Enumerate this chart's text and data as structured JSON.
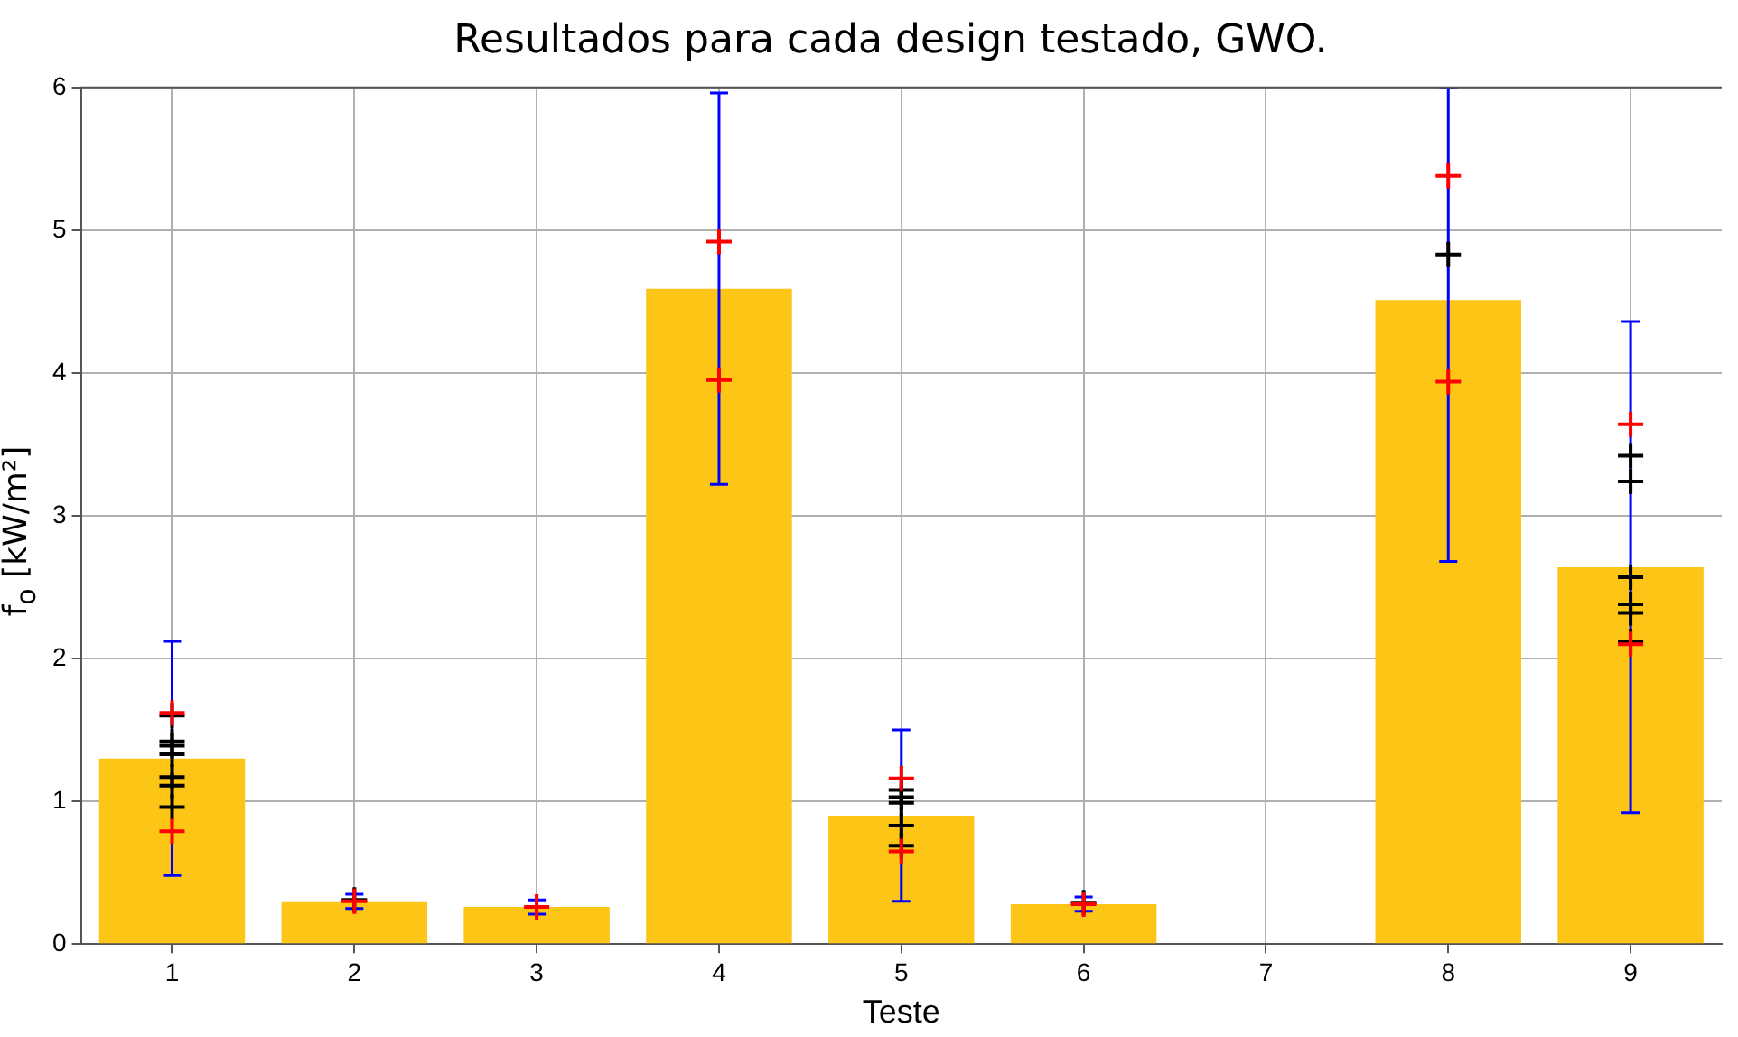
{
  "chart_data": {
    "type": "bar",
    "title": "Resultados para cada design testado, GWO.",
    "xlabel": "Teste",
    "ylabel": "f$_{o}$ [kW/m²]",
    "categories": [
      "1",
      "2",
      "3",
      "4",
      "5",
      "6",
      "7",
      "8",
      "9"
    ],
    "ylim": [
      0,
      6
    ],
    "yticks": [
      0,
      1,
      2,
      3,
      4,
      5,
      6
    ],
    "grid": true,
    "legend": false,
    "marker": "cross",
    "series": [
      {
        "color": "#fdc616",
        "values": [
          1.3,
          0.3,
          0.26,
          4.59,
          0.9,
          0.28,
          null,
          4.51,
          2.64
        ],
        "errors": [
          0.82,
          0.05,
          0.05,
          1.37,
          0.6,
          0.05,
          null,
          [
            2.68,
            6
          ],
          1.72
        ]
      },
      {
        "type": "scatter",
        "color": "#000000",
        "x": [
          "1",
          "1",
          "1",
          "1",
          "1",
          "1",
          "1",
          "2",
          "5",
          "5",
          "5",
          "5",
          "5",
          "6",
          "8",
          "9",
          "9",
          "9",
          "9",
          "9",
          "9"
        ],
        "values": [
          1.6,
          1.42,
          1.39,
          1.33,
          1.17,
          1.11,
          0.96,
          0.31,
          1.08,
          1.03,
          0.99,
          0.83,
          0.69,
          0.29,
          4.83,
          3.42,
          3.24,
          2.57,
          2.38,
          2.32,
          2.12
        ]
      },
      {
        "type": "scatter",
        "color": "#ff0000",
        "x": [
          "1",
          "1",
          "2",
          "3",
          "4",
          "4",
          "5",
          "5",
          "6",
          "8",
          "8",
          "9",
          "9"
        ],
        "values": [
          1.62,
          0.79,
          0.3,
          0.26,
          4.92,
          3.95,
          1.16,
          0.65,
          0.28,
          5.38,
          3.94,
          3.64,
          2.1
        ]
      }
    ]
  }
}
